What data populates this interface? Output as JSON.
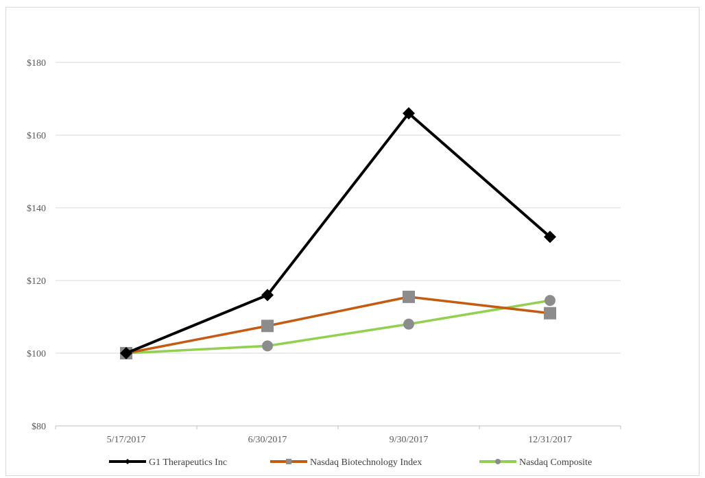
{
  "chart_data": {
    "type": "line",
    "title": "",
    "xlabel": "",
    "ylabel": "",
    "categories": [
      "5/17/2017",
      "6/30/2017",
      "9/30/2017",
      "12/31/2017"
    ],
    "ylim": [
      80,
      190
    ],
    "yticks": [
      80,
      100,
      120,
      140,
      160,
      180
    ],
    "ytick_labels": [
      "$80",
      "$100",
      "$120",
      "$140",
      "$160",
      "$180"
    ],
    "grid": true,
    "legend_position": "bottom",
    "series": [
      {
        "name": "G1 Therapeutics Inc",
        "values": [
          100,
          116,
          166,
          132
        ],
        "color": "#000000",
        "marker": "diamond"
      },
      {
        "name": "Nasdaq Biotechnology Index",
        "values": [
          100,
          107.5,
          115.5,
          111
        ],
        "color": "#c55a11",
        "marker": "square"
      },
      {
        "name": "Nasdaq Composite",
        "values": [
          100,
          102,
          108,
          114.5
        ],
        "color": "#92d050",
        "marker": "circle"
      }
    ],
    "marker_color": "#8c8c8c",
    "gridline_color": "#d9d9d9"
  }
}
